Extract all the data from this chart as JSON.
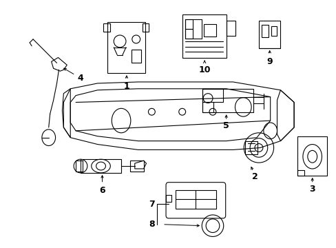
{
  "bg_color": "#ffffff",
  "fig_width": 4.89,
  "fig_height": 3.6,
  "dpi": 100,
  "line_color": "#000000",
  "lw": 0.8,
  "label_fontsize": 9
}
